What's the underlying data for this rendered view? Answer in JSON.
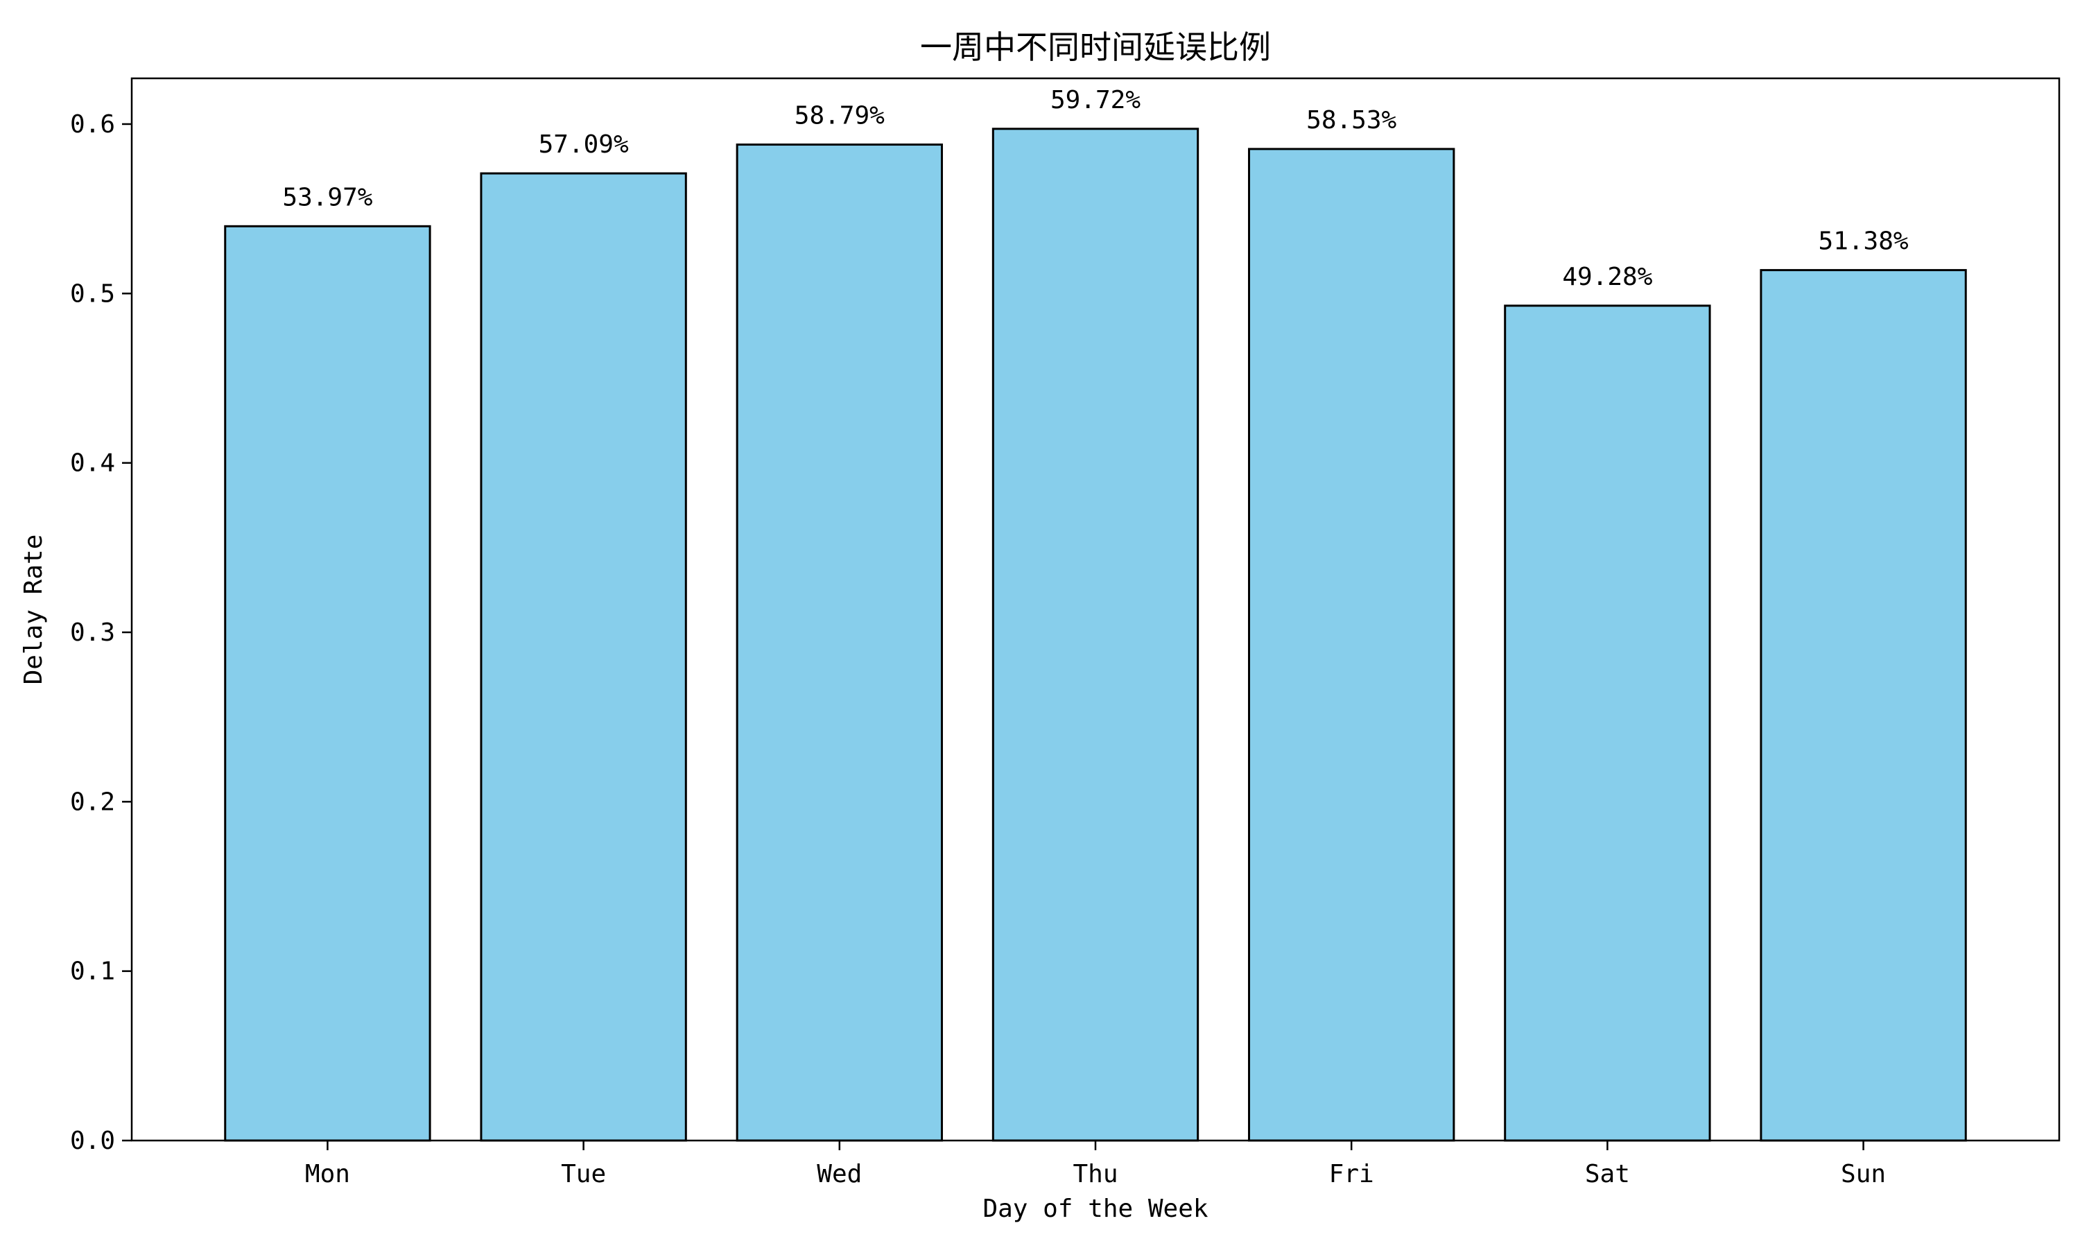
{
  "chart_data": {
    "type": "bar",
    "title": "一周中不同时间延误比例",
    "xlabel": "Day of the Week",
    "ylabel": "Delay Rate",
    "categories": [
      "Mon",
      "Tue",
      "Wed",
      "Thu",
      "Fri",
      "Sat",
      "Sun"
    ],
    "values": [
      0.5397,
      0.5709,
      0.5879,
      0.5972,
      0.5853,
      0.4928,
      0.5138
    ],
    "value_labels": [
      "53.97%",
      "57.09%",
      "58.79%",
      "59.72%",
      "58.53%",
      "49.28%",
      "51.38%"
    ],
    "ylim": [
      0,
      0.627
    ],
    "yticks": [
      0.0,
      0.1,
      0.2,
      0.3,
      0.4,
      0.5,
      0.6
    ],
    "ytick_labels": [
      "0.0",
      "0.1",
      "0.2",
      "0.3",
      "0.4",
      "0.5",
      "0.6"
    ],
    "grid": false,
    "bar_color": "#87CEEB",
    "bar_edge_color": "#000000"
  }
}
